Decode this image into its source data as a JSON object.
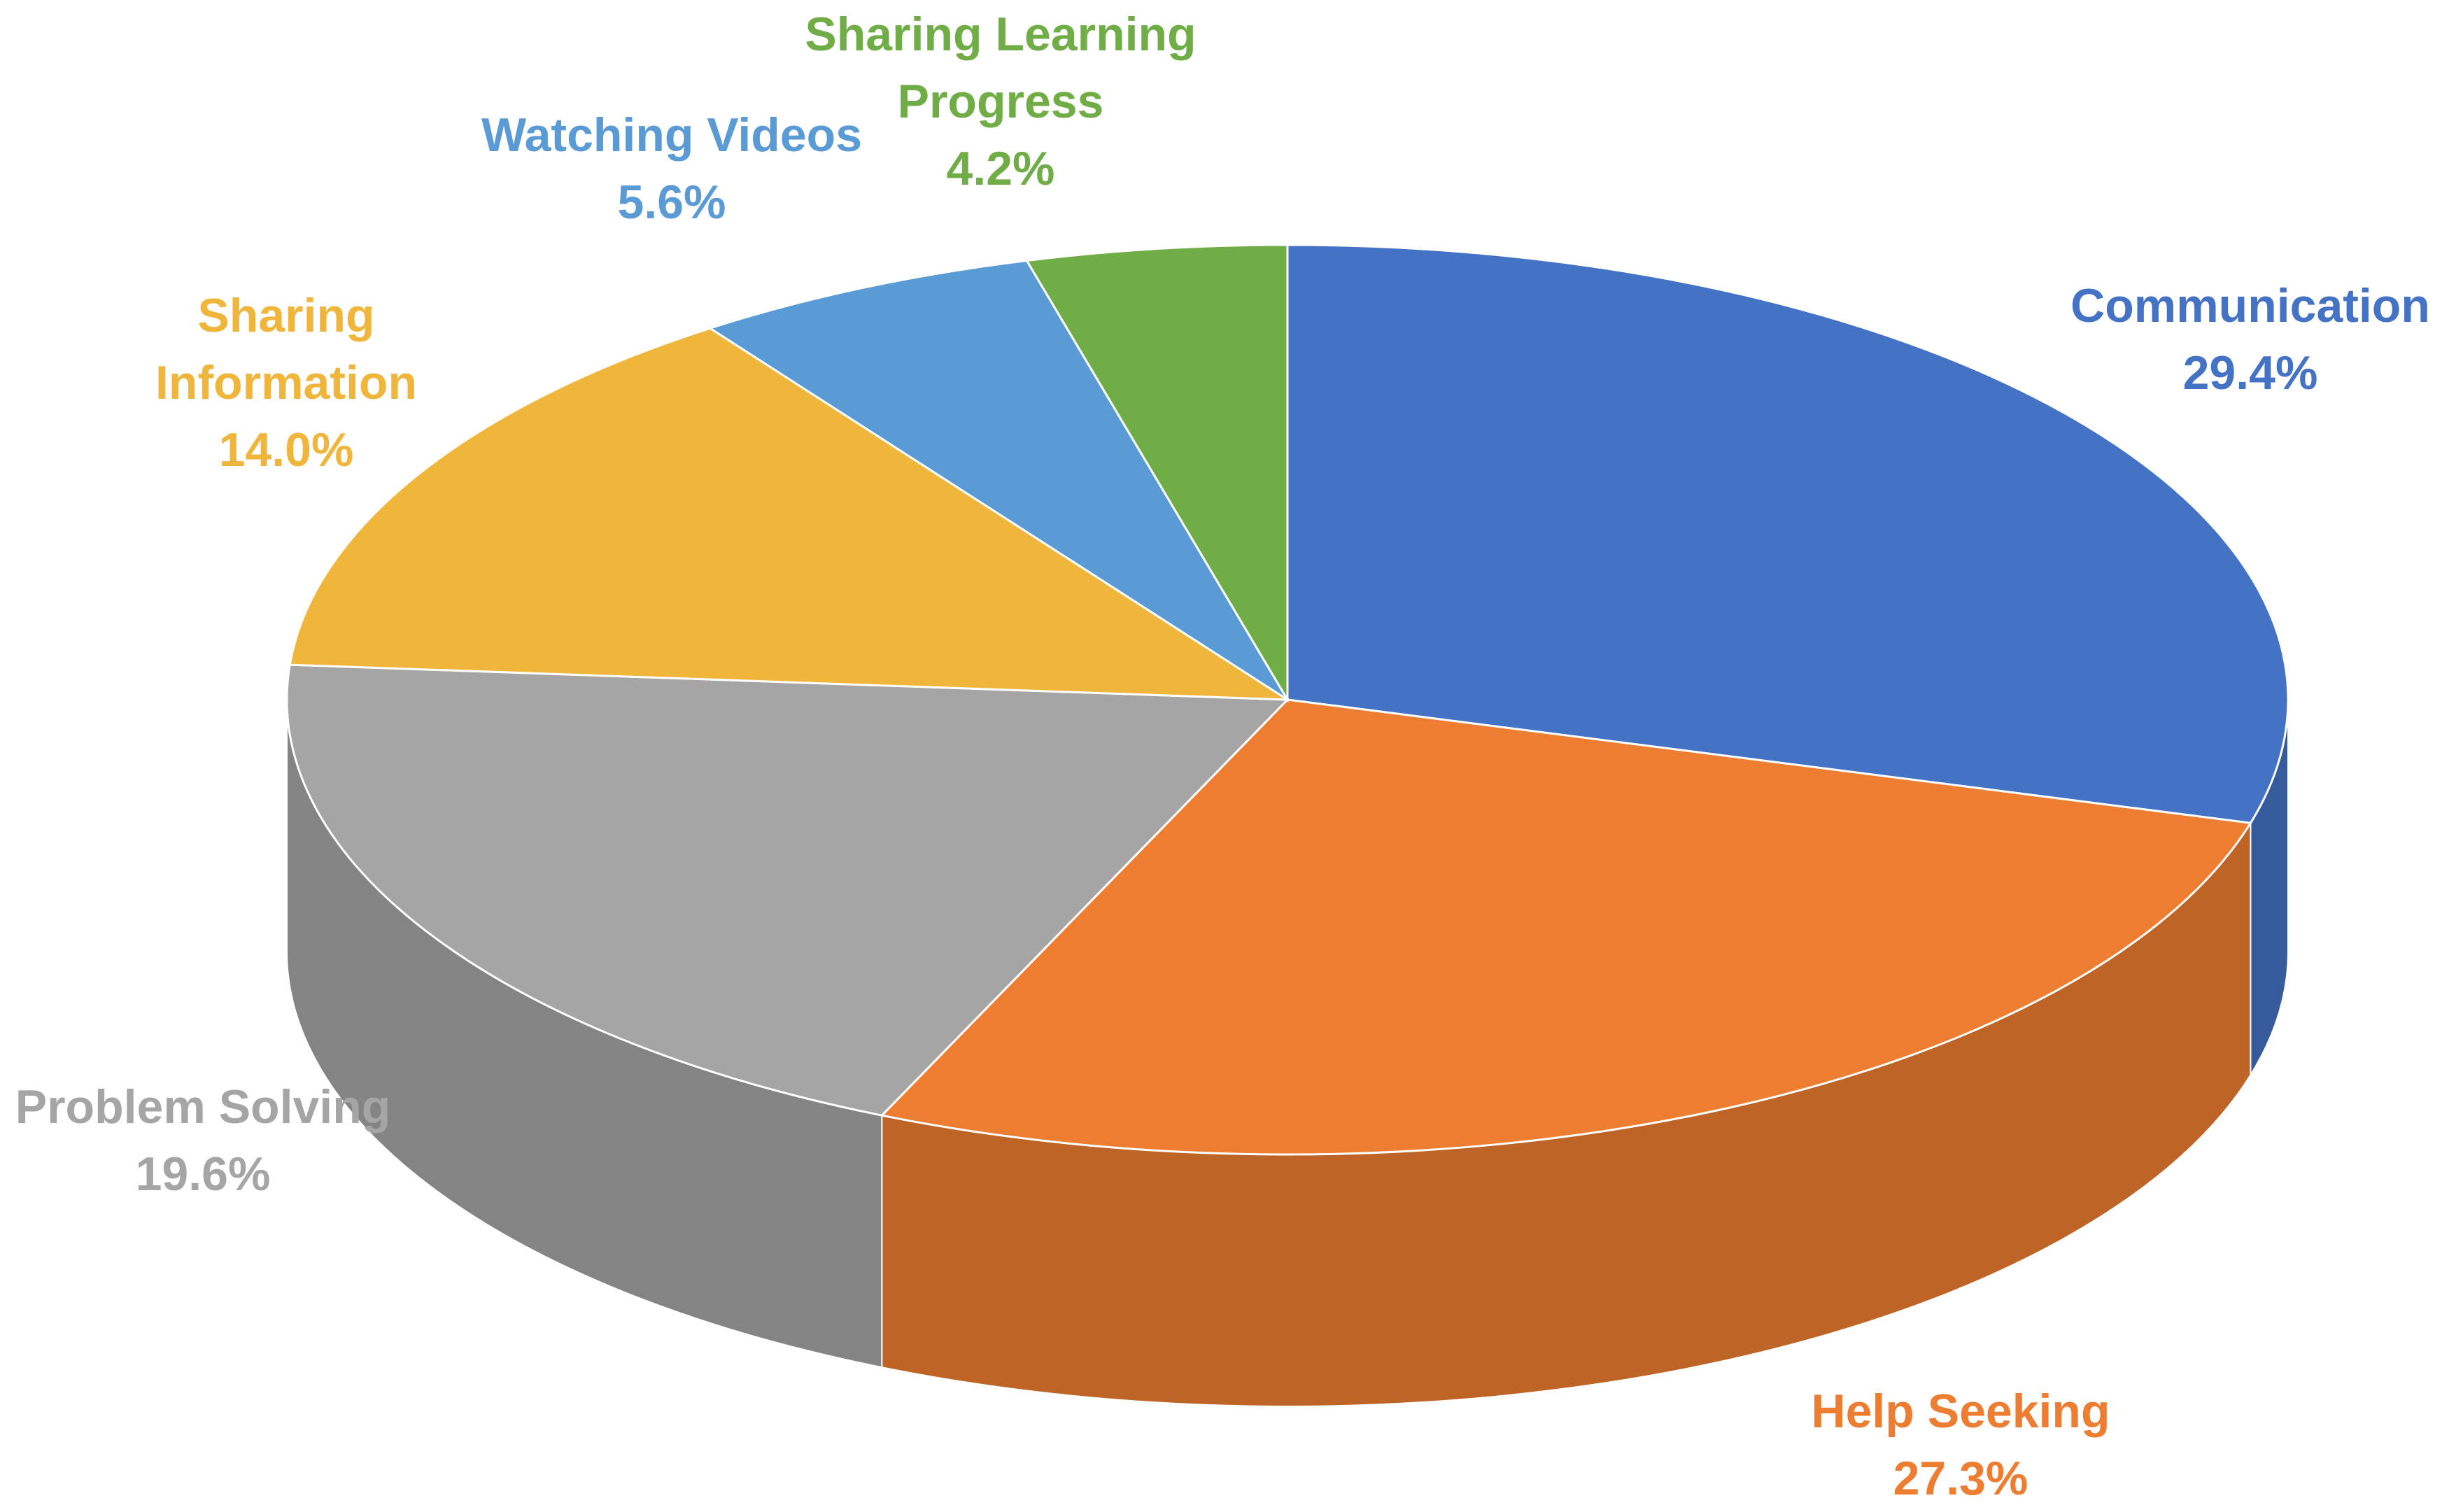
{
  "chart_data": {
    "type": "pie",
    "categories": [
      "Communication",
      "Help Seeking",
      "Problem Solving",
      "Sharing Information",
      "Watching Videos",
      "Sharing Learning Progress"
    ],
    "values": [
      29.4,
      27.3,
      19.6,
      14.0,
      5.6,
      4.2
    ],
    "value_labels": [
      "29.4%",
      "27.3%",
      "19.6%",
      "14.0%",
      "5.6%",
      "4.2%"
    ],
    "colors": [
      "#4472c4",
      "#ed7d31",
      "#a5a5a5",
      "#f0b63c",
      "#5b9bd5",
      "#70ad47"
    ]
  }
}
